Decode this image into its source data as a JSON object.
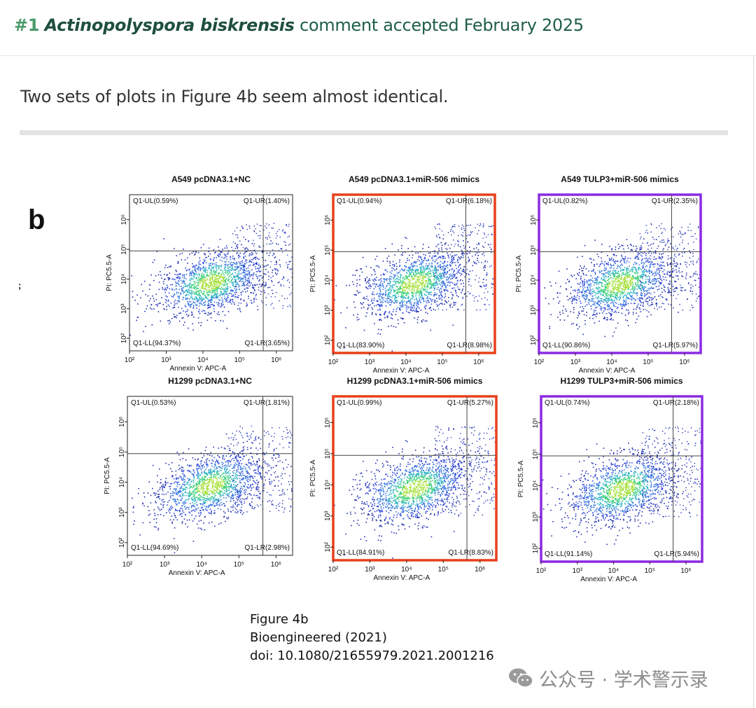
{
  "header": {
    "number": "#1",
    "species": "Actinopolyspora biskrensis",
    "status": "comment accepted February 2025"
  },
  "comment": {
    "text": "Two sets of plots in Figure 4b seem almost identical."
  },
  "figure": {
    "letter": "b",
    "stray_mark": ";",
    "axis_x_label": "Annexin V: APC-A",
    "axis_y_label": "PI: PC5.5-A",
    "x_ticks": [
      "10²",
      "10³",
      "10⁴",
      "10⁵",
      "10⁶"
    ],
    "y_ticks": [
      "10²",
      "10³",
      "10⁴",
      "10⁵",
      "10⁶"
    ],
    "highlight_colors": {
      "red": "#e8401c",
      "purple": "#8a2be2"
    },
    "panels": [
      {
        "title": "A549 pcDNA3.1+NC",
        "ul": "Q1-UL(0.59%)",
        "ur": "Q1-UR(1.40%)",
        "ll": "Q1-LL(94.37%)",
        "lr": "Q1-LR(3.65%)",
        "highlight": "none"
      },
      {
        "title": "A549 pcDNA3.1+miR-506 mimics",
        "ul": "Q1-UL(0.94%)",
        "ur": "Q1-UR(6.18%)",
        "ll": "Q1-LL(83.90%)",
        "lr": "Q1-LR(8.98%)",
        "highlight": "red"
      },
      {
        "title": "A549 TULP3+miR-506 mimics",
        "ul": "Q1-UL(0.82%)",
        "ur": "Q1-UR(2.35%)",
        "ll": "Q1-LL(90.86%)",
        "lr": "Q1-LR(5.97%)",
        "highlight": "purple"
      },
      {
        "title": "H1299 pcDNA3.1+NC",
        "ul": "Q1-UL(0.53%)",
        "ur": "Q1-UR(1.81%)",
        "ll": "Q1-LL(94.69%)",
        "lr": "Q1-LR(2.98%)",
        "highlight": "none"
      },
      {
        "title": "H1299 pcDNA3.1+miR-506 mimics",
        "ul": "Q1-UL(0.99%)",
        "ur": "Q1-UR(5.27%)",
        "ll": "Q1-LL(84.91%)",
        "lr": "Q1-LR(8.83%)",
        "highlight": "red"
      },
      {
        "title": "H1299 TULP3+miR-506 mimics",
        "ul": "Q1-UL(0.74%)",
        "ur": "Q1-UR(2.18%)",
        "ll": "Q1-LL(91.14%)",
        "lr": "Q1-LR(5.94%)",
        "highlight": "purple"
      }
    ]
  },
  "caption": {
    "line1": "Figure 4b",
    "line2": "Bioengineered (2021)",
    "line3": "doi: 10.1080/21655979.2021.2001216"
  },
  "watermark": {
    "text": "公众号 · 学术警示录",
    "icon": "wechat-icon"
  }
}
